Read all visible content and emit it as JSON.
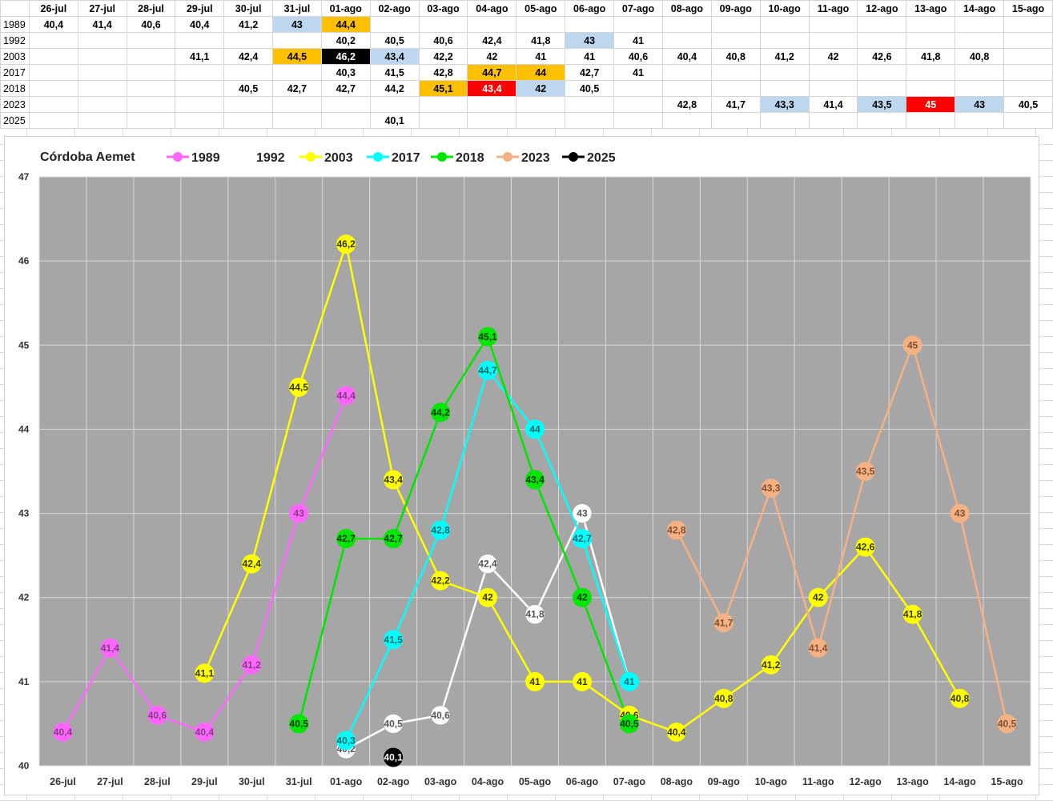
{
  "table": {
    "columns": [
      "26-jul",
      "27-jul",
      "28-jul",
      "29-jul",
      "30-jul",
      "31-jul",
      "01-ago",
      "02-ago",
      "03-ago",
      "04-ago",
      "05-ago",
      "06-ago",
      "07-ago",
      "08-ago",
      "09-ago",
      "10-ago",
      "11-ago",
      "12-ago",
      "13-ago",
      "14-ago",
      "15-ago"
    ],
    "rows": [
      {
        "label": "1989",
        "cells": [
          "40,4",
          "41,4",
          "40,6",
          "40,4",
          "41,2",
          "43",
          "44,4",
          "",
          "",
          "",
          "",
          "",
          "",
          "",
          "",
          "",
          "",
          "",
          "",
          "",
          ""
        ],
        "colors": [
          "",
          "",
          "",
          "",
          "",
          "#bdd7ee",
          "#ffc000",
          "",
          "",
          "",
          "",
          "",
          "",
          "",
          "",
          "",
          "",
          "",
          "",
          "",
          ""
        ]
      },
      {
        "label": "1992",
        "cells": [
          "",
          "",
          "",
          "",
          "",
          "",
          "40,2",
          "40,5",
          "40,6",
          "42,4",
          "41,8",
          "43",
          "41",
          "",
          "",
          "",
          "",
          "",
          "",
          "",
          ""
        ],
        "colors": [
          "",
          "",
          "",
          "",
          "",
          "",
          "",
          "",
          "",
          "",
          "",
          "#bdd7ee",
          "",
          "",
          "",
          "",
          "",
          "",
          "",
          "",
          ""
        ]
      },
      {
        "label": "2003",
        "cells": [
          "",
          "",
          "",
          "41,1",
          "42,4",
          "44,5",
          "46,2",
          "43,4",
          "42,2",
          "42",
          "41",
          "41",
          "40,6",
          "40,4",
          "40,8",
          "41,2",
          "42",
          "42,6",
          "41,8",
          "40,8",
          ""
        ],
        "colors": [
          "",
          "",
          "",
          "",
          "",
          "#ffc000",
          "#000000",
          "#bdd7ee",
          "",
          "",
          "",
          "",
          "",
          "",
          "",
          "",
          "",
          "",
          "",
          "",
          ""
        ]
      },
      {
        "label": "2017",
        "cells": [
          "",
          "",
          "",
          "",
          "",
          "",
          "40,3",
          "41,5",
          "42,8",
          "44,7",
          "44",
          "42,7",
          "41",
          "",
          "",
          "",
          "",
          "",
          "",
          "",
          ""
        ],
        "colors": [
          "",
          "",
          "",
          "",
          "",
          "",
          "",
          "",
          "",
          "#ffc000",
          "#ffc000",
          "",
          "",
          "",
          "",
          "",
          "",
          "",
          "",
          "",
          ""
        ]
      },
      {
        "label": "2018",
        "cells": [
          "",
          "",
          "",
          "",
          "40,5",
          "42,7",
          "42,7",
          "44,2",
          "45,1",
          "43,4",
          "42",
          "40,5",
          "",
          "",
          "",
          "",
          "",
          "",
          "",
          "",
          ""
        ],
        "colors": [
          "",
          "",
          "",
          "",
          "",
          "",
          "",
          "",
          "#ffc000",
          "#ff0000",
          "#bdd7ee",
          "",
          "",
          "",
          "",
          "",
          "",
          "",
          "",
          "",
          ""
        ],
        "offset": 1
      },
      {
        "label": "2023",
        "cells": [
          "",
          "",
          "",
          "",
          "",
          "",
          "",
          "",
          "",
          "",
          "",
          "",
          "",
          "42,8",
          "41,7",
          "43,3",
          "41,4",
          "43,5",
          "45",
          "43",
          "40,5"
        ],
        "colors": [
          "",
          "",
          "",
          "",
          "",
          "",
          "",
          "",
          "",
          "",
          "",
          "",
          "",
          "",
          "",
          "#bdd7ee",
          "",
          "#bdd7ee",
          "#ff0000",
          "#bdd7ee",
          ""
        ]
      },
      {
        "label": "2025",
        "cells": [
          "",
          "",
          "",
          "",
          "",
          "",
          "",
          "40,1",
          "",
          "",
          "",
          "",
          "",
          "",
          "",
          "",
          "",
          "",
          "",
          "",
          ""
        ],
        "colors": [
          "",
          "",
          "",
          "",
          "",
          "",
          "",
          "",
          "",
          "",
          "",
          "",
          "",
          "",
          "",
          "",
          "",
          "",
          "",
          "",
          ""
        ]
      }
    ]
  },
  "chart_data": {
    "type": "line",
    "title": "Córdoba Aemet",
    "categories": [
      "26-jul",
      "27-jul",
      "28-jul",
      "29-jul",
      "30-jul",
      "31-jul",
      "01-ago",
      "02-ago",
      "03-ago",
      "04-ago",
      "05-ago",
      "06-ago",
      "07-ago",
      "08-ago",
      "09-ago",
      "10-ago",
      "11-ago",
      "12-ago",
      "13-ago",
      "14-ago",
      "15-ago"
    ],
    "ylim": [
      40,
      47
    ],
    "yticks": [
      "40",
      "41",
      "42",
      "43",
      "44",
      "45",
      "46",
      "47"
    ],
    "grid": true,
    "legend_position": "top",
    "plot_background": "#a6a6a6",
    "series": [
      {
        "name": "1989",
        "color": "#ff66ff",
        "line": true,
        "values": [
          40.4,
          41.4,
          40.6,
          40.4,
          41.2,
          43,
          44.4,
          null,
          null,
          null,
          null,
          null,
          null,
          null,
          null,
          null,
          null,
          null,
          null,
          null,
          null
        ],
        "labels": [
          "40,4",
          "41,4",
          "40,6",
          "40,4",
          "41,2",
          "43",
          "44,4",
          "",
          "",
          "",
          "",
          "",
          "",
          "",
          "",
          "",
          "",
          "",
          "",
          "",
          ""
        ]
      },
      {
        "name": "1992",
        "color": "#ffffff",
        "line": true,
        "values": [
          null,
          null,
          null,
          null,
          null,
          null,
          40.2,
          40.5,
          40.6,
          42.4,
          41.8,
          43,
          41,
          null,
          null,
          null,
          null,
          null,
          null,
          null,
          null
        ],
        "labels": [
          "",
          "",
          "",
          "",
          "",
          "",
          "40,2",
          "40,5",
          "40,6",
          "42,4",
          "41,8",
          "43",
          "41",
          "",
          "",
          "",
          "",
          "",
          "",
          "",
          ""
        ]
      },
      {
        "name": "2003",
        "color": "#ffff00",
        "line": true,
        "values": [
          null,
          null,
          null,
          41.1,
          42.4,
          44.5,
          46.2,
          43.4,
          42.2,
          42,
          41,
          41,
          40.6,
          40.4,
          40.8,
          41.2,
          42,
          42.6,
          41.8,
          40.8,
          null
        ],
        "labels": [
          "",
          "",
          "",
          "41,1",
          "42,4",
          "44,5",
          "46,2",
          "43,4",
          "42,2",
          "42",
          "41",
          "41",
          "40,6",
          "40,4",
          "40,8",
          "41,2",
          "42",
          "42,6",
          "41,8",
          "40,8",
          ""
        ]
      },
      {
        "name": "2017",
        "color": "#00ffff",
        "line": true,
        "values": [
          null,
          null,
          null,
          null,
          null,
          null,
          40.3,
          41.5,
          42.8,
          44.7,
          44,
          42.7,
          41,
          null,
          null,
          null,
          null,
          null,
          null,
          null,
          null
        ],
        "labels": [
          "",
          "",
          "",
          "",
          "",
          "",
          "40,3",
          "41,5",
          "42,8",
          "44,7",
          "44",
          "42,7",
          "41",
          "",
          "",
          "",
          "",
          "",
          "",
          "",
          ""
        ]
      },
      {
        "name": "2018",
        "color": "#00e600",
        "line": true,
        "values": [
          null,
          null,
          null,
          null,
          null,
          40.5,
          42.7,
          42.7,
          44.2,
          45.1,
          43.4,
          42,
          40.5,
          null,
          null,
          null,
          null,
          null,
          null,
          null,
          null
        ],
        "labels": [
          "",
          "",
          "",
          "",
          "",
          "40,5",
          "42,7",
          "42,7",
          "44,2",
          "45,1",
          "43,4",
          "42",
          "40,5",
          "",
          "",
          "",
          "",
          "",
          "",
          "",
          ""
        ]
      },
      {
        "name": "2023",
        "color": "#f4b183",
        "line": true,
        "values": [
          null,
          null,
          null,
          null,
          null,
          null,
          null,
          null,
          null,
          null,
          null,
          null,
          null,
          42.8,
          41.7,
          43.3,
          41.4,
          43.5,
          45,
          43,
          40.5
        ],
        "labels": [
          "",
          "",
          "",
          "",
          "",
          "",
          "",
          "",
          "",
          "",
          "",
          "",
          "",
          "42,8",
          "41,7",
          "43,3",
          "41,4",
          "43,5",
          "45",
          "43",
          "40,5"
        ]
      },
      {
        "name": "2025",
        "color": "#000000",
        "line": true,
        "values": [
          null,
          null,
          null,
          null,
          null,
          null,
          null,
          40.1,
          null,
          null,
          null,
          null,
          null,
          null,
          null,
          null,
          null,
          null,
          null,
          null,
          null
        ],
        "labels": [
          "",
          "",
          "",
          "",
          "",
          "",
          "",
          "40,1",
          "",
          "",
          "",
          "",
          "",
          "",
          "",
          "",
          "",
          "",
          "",
          "",
          ""
        ]
      }
    ],
    "label_colors": {
      "1989": "#7f3f7f",
      "1992": "#555555",
      "2003": "#333300",
      "2017": "#006666",
      "2018": "#003300",
      "2023": "#7f4f2f",
      "2025": "#ffffff"
    }
  }
}
